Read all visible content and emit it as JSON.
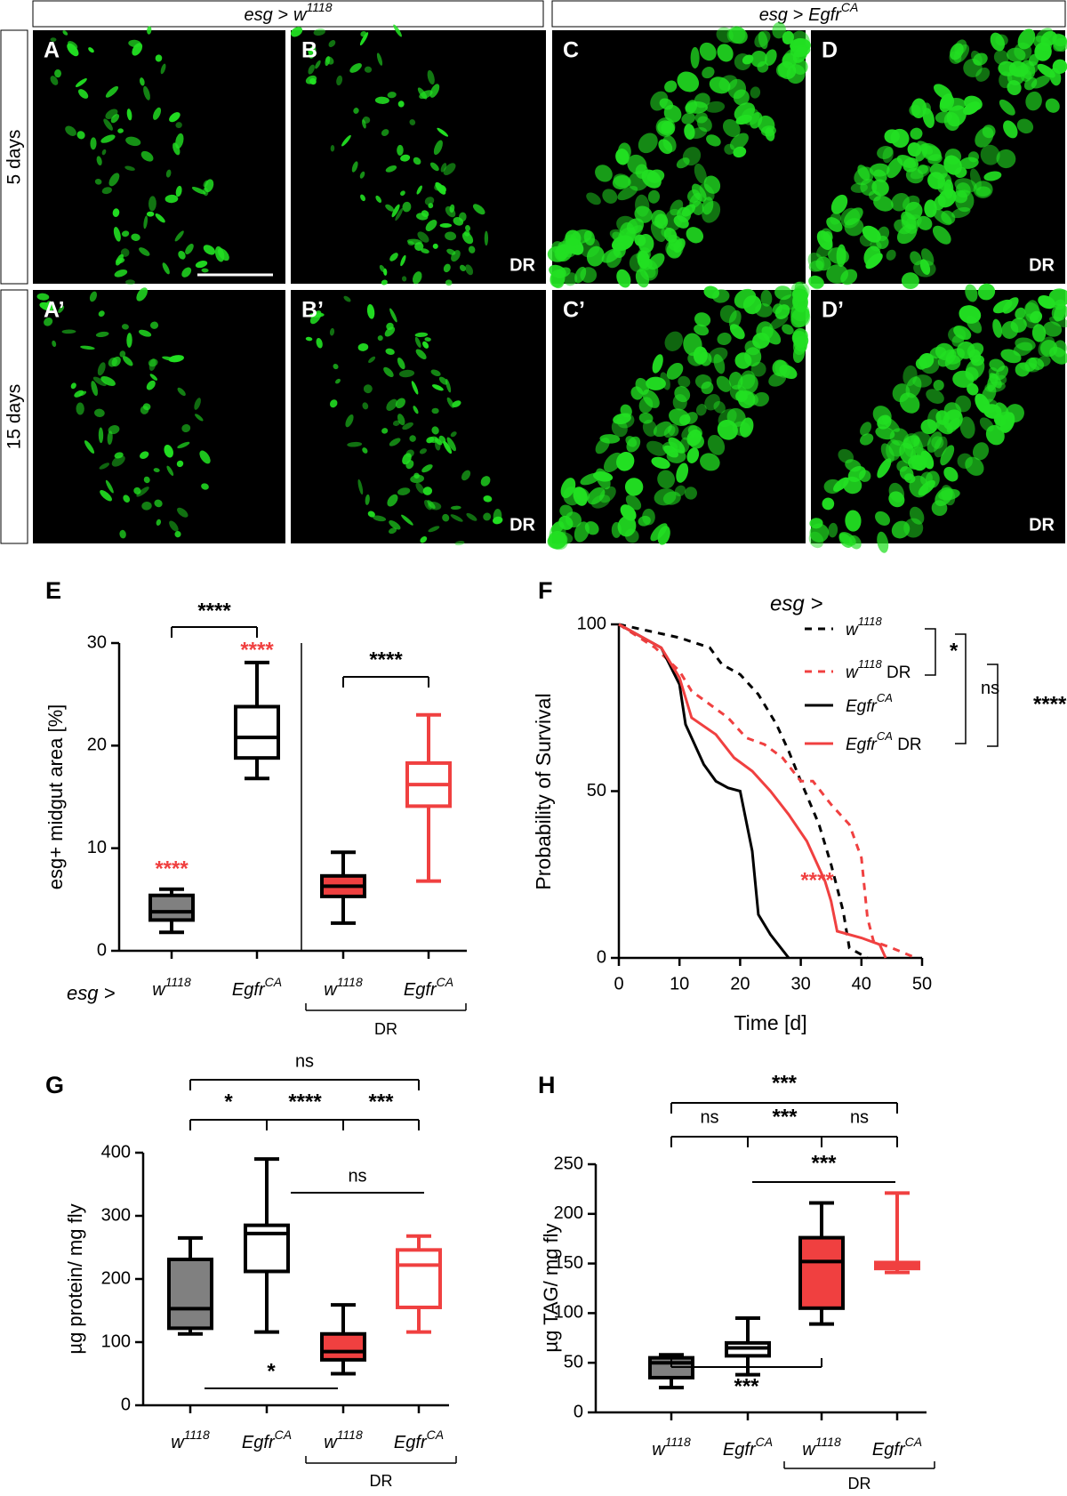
{
  "figure": {
    "genotypes": [
      [
        "esg >",
        "w",
        "1118"
      ],
      [
        "esg >",
        "Egfr",
        "CA"
      ]
    ],
    "rows": [
      "5 days",
      "15 days"
    ],
    "panels": [
      "A",
      "B",
      "C",
      "D",
      "A’",
      "B’",
      "C’",
      "D’"
    ],
    "dr_label": "DR"
  },
  "chart_data": [
    {
      "type": "box",
      "panel": "E",
      "ylabel": "esg+ midgut area [%]",
      "group_prefix": "esg >",
      "group_label": "DR",
      "ylim": [
        0,
        30
      ],
      "yticks": [
        0,
        10,
        20,
        30
      ],
      "categories": [
        [
          "w",
          "1118"
        ],
        [
          "Egfr",
          "CA"
        ],
        [
          "w",
          "1118"
        ],
        [
          "Egfr",
          "CA"
        ]
      ],
      "boxes": [
        {
          "min": 1.8,
          "q1": 3.0,
          "median": 3.8,
          "q3": 5.4,
          "max": 6.0,
          "fill": "#808080",
          "stroke": "#000000"
        },
        {
          "min": 16.8,
          "q1": 18.8,
          "median": 20.8,
          "q3": 23.8,
          "max": 28.1,
          "fill": "#ffffff",
          "stroke": "#000000"
        },
        {
          "min": 2.7,
          "q1": 5.3,
          "median": 6.3,
          "q3": 7.3,
          "max": 9.6,
          "fill": "#f04040",
          "stroke": "#000000"
        },
        {
          "min": 6.8,
          "q1": 14.1,
          "median": 16.2,
          "q3": 18.3,
          "max": 23.0,
          "fill": "#ffffff",
          "stroke": "#f04040"
        }
      ],
      "annotations": [
        {
          "text": "****",
          "color": "#000000"
        },
        {
          "text": "****",
          "color": "#f04040"
        },
        {
          "text": "****",
          "color": "#f04040"
        },
        {
          "text": "****",
          "color": "#000000"
        }
      ]
    },
    {
      "type": "line",
      "panel": "F",
      "xlabel": "Time [d]",
      "ylabel": "Probability of Survival",
      "legend_title": "esg >",
      "xlim": [
        0,
        50
      ],
      "xticks": [
        0,
        10,
        20,
        30,
        40,
        50
      ],
      "ylim": [
        0,
        100
      ],
      "yticks": [
        0,
        50,
        100
      ],
      "series": [
        {
          "name": [
            "w",
            "1118"
          ],
          "color": "#000000",
          "dashed": true,
          "x": [
            0,
            5,
            10,
            15,
            17,
            20,
            23,
            26,
            28,
            30,
            33,
            35,
            37,
            38,
            40,
            41
          ],
          "values": [
            100,
            98,
            96,
            93,
            88,
            85,
            79,
            70,
            62,
            53,
            40,
            28,
            14,
            3,
            1,
            0
          ]
        },
        {
          "name": [
            "w",
            "1118",
            " DR"
          ],
          "color": "#f04040",
          "dashed": true,
          "x": [
            0,
            6,
            10,
            12,
            15,
            18,
            21,
            24,
            27,
            30,
            32,
            35,
            38,
            40,
            41,
            42,
            45,
            49
          ],
          "values": [
            100,
            93,
            86,
            80,
            76,
            72,
            66,
            64,
            60,
            53,
            53,
            46,
            40,
            30,
            12,
            5,
            3,
            0
          ]
        },
        {
          "name": [
            "Egfr",
            "CA"
          ],
          "color": "#000000",
          "dashed": false,
          "x": [
            0,
            7,
            10,
            11,
            14,
            16,
            18,
            20,
            22,
            23,
            25,
            28
          ],
          "values": [
            100,
            93,
            82,
            70,
            58,
            53,
            51,
            50,
            32,
            13,
            7,
            0
          ]
        },
        {
          "name": [
            "Egfr",
            "CA",
            " DR"
          ],
          "color": "#f04040",
          "dashed": false,
          "x": [
            0,
            7,
            10,
            12,
            16,
            19,
            22,
            25,
            28,
            31,
            34,
            35,
            36,
            40,
            43,
            44
          ],
          "values": [
            100,
            93,
            84,
            72,
            67,
            60,
            56,
            50,
            43,
            35,
            23,
            17,
            8,
            6,
            4,
            0
          ]
        }
      ],
      "annotations": [
        {
          "text": "*",
          "color": "#000000"
        },
        {
          "text": "ns",
          "color": "#000000"
        },
        {
          "text": "****",
          "color": "#000000"
        },
        {
          "text": "****",
          "color": "#f04040"
        }
      ]
    },
    {
      "type": "box",
      "panel": "G",
      "ylabel": "µg protein/ mg fly",
      "group_label": "DR",
      "ylim": [
        0,
        400
      ],
      "yticks": [
        0,
        100,
        200,
        300,
        400
      ],
      "categories": [
        [
          "w",
          "1118"
        ],
        [
          "Egfr",
          "CA"
        ],
        [
          "w",
          "1118"
        ],
        [
          "Egfr",
          "CA"
        ]
      ],
      "boxes": [
        {
          "min": 113,
          "q1": 122,
          "median": 153,
          "q3": 231,
          "max": 265,
          "fill": "#808080",
          "stroke": "#000000"
        },
        {
          "min": 116,
          "q1": 212,
          "median": 272,
          "q3": 285,
          "max": 390,
          "fill": "#ffffff",
          "stroke": "#000000"
        },
        {
          "min": 50,
          "q1": 72,
          "median": 85,
          "q3": 113,
          "max": 159,
          "fill": "#f04040",
          "stroke": "#000000"
        },
        {
          "min": 116,
          "q1": 155,
          "median": 222,
          "q3": 246,
          "max": 268,
          "fill": "#ffffff",
          "stroke": "#f04040"
        }
      ],
      "annotations": [
        {
          "text": "ns",
          "color": "#000000"
        },
        {
          "text": "*",
          "color": "#000000"
        },
        {
          "text": "****",
          "color": "#000000"
        },
        {
          "text": "***",
          "color": "#000000"
        },
        {
          "text": "ns",
          "color": "#000000"
        },
        {
          "text": "*",
          "color": "#000000"
        }
      ]
    },
    {
      "type": "box",
      "panel": "H",
      "ylabel": "µg TAG/ mg fly",
      "group_label": "DR",
      "ylim": [
        0,
        250
      ],
      "yticks": [
        0,
        50,
        100,
        150,
        200,
        250
      ],
      "categories": [
        [
          "w",
          "1118"
        ],
        [
          "Egfr",
          "CA"
        ],
        [
          "w",
          "1118"
        ],
        [
          "Egfr",
          "CA"
        ]
      ],
      "boxes": [
        {
          "min": 25,
          "q1": 35,
          "median": 50,
          "q3": 55,
          "max": 58,
          "fill": "#808080",
          "stroke": "#000000"
        },
        {
          "min": 38,
          "q1": 57,
          "median": 65,
          "q3": 70,
          "max": 95,
          "fill": "#ffffff",
          "stroke": "#000000"
        },
        {
          "min": 89,
          "q1": 105,
          "median": 152,
          "q3": 176,
          "max": 211,
          "fill": "#f04040",
          "stroke": "#000000"
        },
        {
          "min": 141,
          "q1": 145,
          "median": 148,
          "q3": 151,
          "max": 221,
          "fill": "#f04040",
          "stroke": "#f04040"
        }
      ],
      "annotations": [
        {
          "text": "***",
          "color": "#000000"
        },
        {
          "text": "ns",
          "color": "#000000"
        },
        {
          "text": "***",
          "color": "#000000"
        },
        {
          "text": "ns",
          "color": "#000000"
        },
        {
          "text": "***",
          "color": "#000000"
        },
        {
          "text": "***",
          "color": "#000000"
        }
      ]
    }
  ]
}
